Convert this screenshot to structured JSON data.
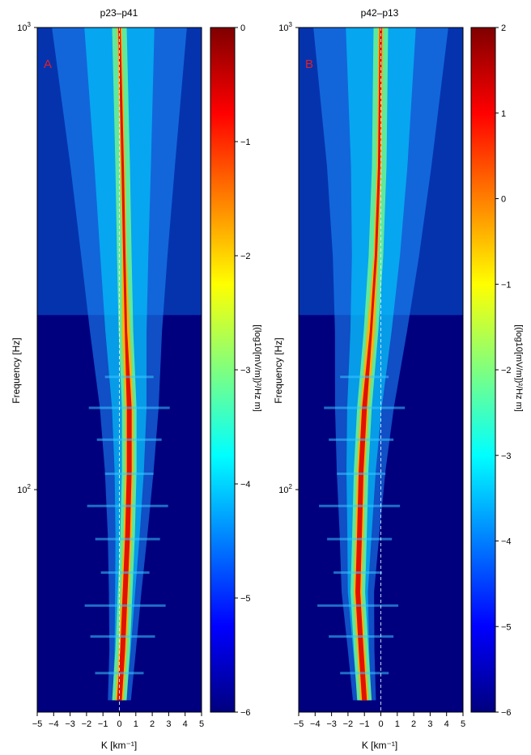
{
  "colors": {
    "colormap": [
      "#00007f",
      "#0000ff",
      "#007fff",
      "#00ffff",
      "#7fff7f",
      "#ffff00",
      "#ff7f00",
      "#ff0000",
      "#7f0000"
    ]
  },
  "chart_data": [
    {
      "type": "heatmap",
      "panel_letter": "A",
      "title": "p23–p41",
      "xlabel": "K  [km⁻¹]",
      "ylabel": "Frequency  [Hz]",
      "x_ticks": [
        -5,
        -4,
        -3,
        -2,
        -1,
        0,
        1,
        2,
        3,
        4,
        5
      ],
      "x_tick_labels": [
        "−5",
        "−4",
        "−3",
        "−2",
        "−1",
        "0",
        "1",
        "2",
        "3",
        "4",
        "5"
      ],
      "xlim": [
        -5,
        5
      ],
      "y_scale": "log",
      "ylim": [
        33,
        1000
      ],
      "y_tick_labels": [
        {
          "value": 1000,
          "base": "10",
          "exp": "3"
        },
        {
          "value": 100,
          "base": "10",
          "exp": "2"
        }
      ],
      "ridge": [
        {
          "f": 35,
          "k": 0.0
        },
        {
          "f": 45,
          "k": 0.2
        },
        {
          "f": 60,
          "k": 0.35
        },
        {
          "f": 80,
          "k": 0.5
        },
        {
          "f": 110,
          "k": 0.6
        },
        {
          "f": 150,
          "k": 0.6
        },
        {
          "f": 220,
          "k": 0.4
        },
        {
          "f": 320,
          "k": 0.3
        },
        {
          "f": 500,
          "k": 0.2
        },
        {
          "f": 1000,
          "k": 0.0
        }
      ],
      "colorbar": {
        "label": "[(log10[mV/m])²/Hz m]",
        "range": [
          -6,
          0
        ],
        "ticks": [
          "0",
          "−1",
          "−2",
          "−3",
          "−4",
          "−5",
          "−6"
        ]
      }
    },
    {
      "type": "heatmap",
      "panel_letter": "B",
      "title": "p42–p13",
      "xlabel": "K  [km⁻¹]",
      "ylabel": "Frequency  [Hz]",
      "x_ticks": [
        -5,
        -4,
        -3,
        -2,
        -1,
        0,
        1,
        2,
        3,
        4,
        5
      ],
      "x_tick_labels": [
        "−5",
        "−4",
        "−3",
        "−2",
        "−1",
        "0",
        "1",
        "2",
        "3",
        "4",
        "5"
      ],
      "xlim": [
        -5,
        5
      ],
      "y_scale": "log",
      "ylim": [
        33,
        1000
      ],
      "y_tick_labels": [
        {
          "value": 1000,
          "base": "10",
          "exp": "3"
        },
        {
          "value": 100,
          "base": "10",
          "exp": "2"
        }
      ],
      "ridge": [
        {
          "f": 35,
          "k": -1.0
        },
        {
          "f": 45,
          "k": -1.2
        },
        {
          "f": 60,
          "k": -1.4
        },
        {
          "f": 80,
          "k": -1.3
        },
        {
          "f": 110,
          "k": -1.2
        },
        {
          "f": 150,
          "k": -1.0
        },
        {
          "f": 220,
          "k": -0.6
        },
        {
          "f": 320,
          "k": -0.3
        },
        {
          "f": 500,
          "k": -0.1
        },
        {
          "f": 1000,
          "k": 0.0
        }
      ],
      "colorbar": {
        "label": "[(log10[mV/m])²/Hz m]",
        "range": [
          -6,
          2
        ],
        "ticks": [
          "2",
          "1",
          "0",
          "−1",
          "−2",
          "−3",
          "−4",
          "−5",
          "−6"
        ]
      }
    }
  ]
}
